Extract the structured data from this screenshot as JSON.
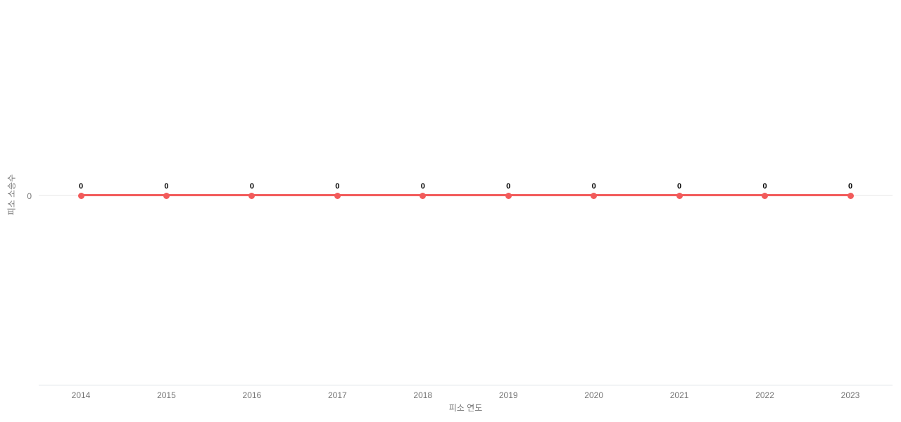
{
  "chart_data": {
    "type": "line",
    "title": "",
    "xlabel": "피소 연도",
    "ylabel": "피소 소송수",
    "categories": [
      "2014",
      "2015",
      "2016",
      "2017",
      "2018",
      "2019",
      "2020",
      "2021",
      "2022",
      "2023"
    ],
    "series": [
      {
        "name": "피소 소송수",
        "values": [
          0,
          0,
          0,
          0,
          0,
          0,
          0,
          0,
          0,
          0
        ],
        "color": "#f25b5b",
        "marker": "circle"
      }
    ],
    "point_labels": [
      "0",
      "0",
      "0",
      "0",
      "0",
      "0",
      "0",
      "0",
      "0",
      "0"
    ],
    "y_ticks": [
      "0"
    ],
    "legend_position": "none",
    "grid": "zero-line-only",
    "colors": {
      "axis_text": "#757575",
      "value_label": "#000000",
      "gridline": "#e9e9e9",
      "axis_line": "#dde2e7",
      "background": "#ffffff"
    }
  }
}
